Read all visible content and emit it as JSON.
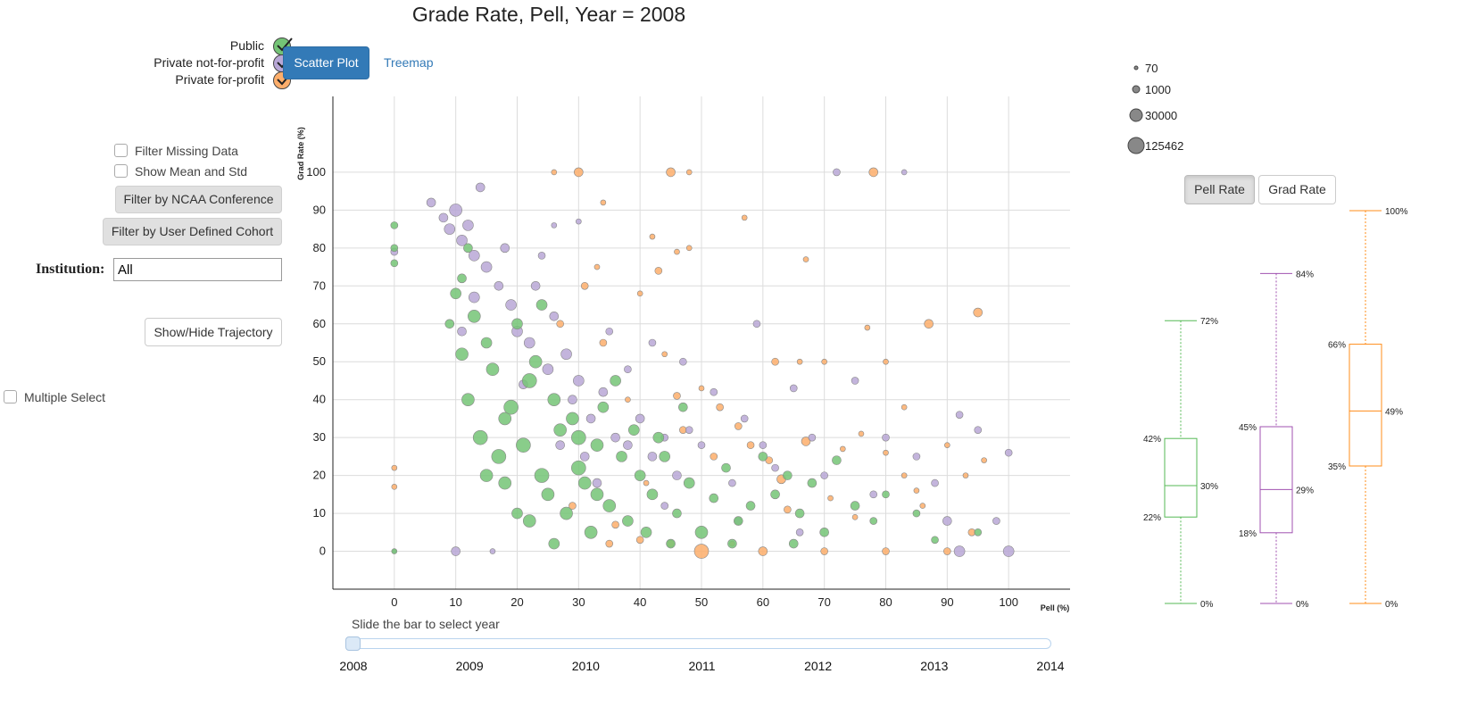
{
  "title": "Grade Rate, Pell, Year = 2008",
  "type_legend": [
    {
      "label": "Public",
      "color": "#74c476"
    },
    {
      "label": "Private not-for-profit",
      "color": "#b8a7d6"
    },
    {
      "label": "Private for-profit",
      "color": "#fdae6b"
    }
  ],
  "view_tabs": {
    "scatter": "Scatter Plot",
    "treemap": "Treemap"
  },
  "controls": {
    "filter_missing": "Filter Missing Data",
    "show_mean": "Show Mean and Std",
    "ncaa": "Filter by NCAA Conference",
    "cohort": "Filter by User Defined Cohort",
    "institution_label": "Institution:",
    "institution_value": "All",
    "trajectory": "Show/Hide Trajectory",
    "multiple_select": "Multiple Select"
  },
  "size_legend": [
    "70",
    "1000",
    "30000",
    "125462"
  ],
  "box_toggle": {
    "pell": "Pell Rate",
    "grad": "Grad Rate"
  },
  "slider": {
    "caption": "Slide the bar to select year",
    "years": [
      "2008",
      "2009",
      "2010",
      "2011",
      "2012",
      "2013",
      "2014"
    ],
    "selected": "2008"
  },
  "chart_data": {
    "type": "scatter",
    "xlabel": "Pell (%)",
    "ylabel": "Grad Rate (%)",
    "xlim": [
      -10,
      110
    ],
    "ylim": [
      -10,
      120
    ],
    "x_ticks": [
      0,
      10,
      20,
      30,
      40,
      50,
      60,
      70,
      80,
      90,
      100
    ],
    "y_ticks": [
      0,
      10,
      20,
      30,
      40,
      50,
      60,
      70,
      80,
      90,
      100
    ],
    "grid": true,
    "series": [
      {
        "name": "Public",
        "color": "#74c476",
        "points": [
          [
            0,
            86,
            4
          ],
          [
            0,
            80,
            4
          ],
          [
            0,
            76,
            4
          ],
          [
            0,
            0,
            3
          ],
          [
            11,
            52,
            7
          ],
          [
            12,
            40,
            7
          ],
          [
            14,
            30,
            8
          ],
          [
            17,
            25,
            8
          ],
          [
            20,
            60,
            6
          ],
          [
            18,
            35,
            7
          ],
          [
            22,
            45,
            8
          ],
          [
            24,
            20,
            8
          ],
          [
            25,
            15,
            7
          ],
          [
            27,
            32,
            7
          ],
          [
            28,
            10,
            7
          ],
          [
            30,
            22,
            8
          ],
          [
            31,
            18,
            7
          ],
          [
            33,
            28,
            7
          ],
          [
            35,
            12,
            7
          ],
          [
            36,
            45,
            6
          ],
          [
            38,
            8,
            6
          ],
          [
            40,
            20,
            6
          ],
          [
            42,
            15,
            6
          ],
          [
            44,
            25,
            6
          ],
          [
            46,
            10,
            5
          ],
          [
            48,
            18,
            6
          ],
          [
            50,
            5,
            7
          ],
          [
            52,
            14,
            5
          ],
          [
            54,
            22,
            5
          ],
          [
            56,
            8,
            5
          ],
          [
            58,
            12,
            5
          ],
          [
            60,
            25,
            5
          ],
          [
            62,
            15,
            5
          ],
          [
            64,
            20,
            5
          ],
          [
            66,
            10,
            5
          ],
          [
            68,
            18,
            5
          ],
          [
            70,
            5,
            5
          ],
          [
            72,
            24,
            5
          ],
          [
            75,
            12,
            5
          ],
          [
            78,
            8,
            4
          ],
          [
            80,
            15,
            4
          ],
          [
            85,
            10,
            4
          ],
          [
            88,
            3,
            4
          ],
          [
            95,
            5,
            4
          ],
          [
            15,
            55,
            6
          ],
          [
            13,
            62,
            7
          ],
          [
            10,
            68,
            6
          ],
          [
            11,
            72,
            5
          ],
          [
            16,
            48,
            7
          ],
          [
            19,
            38,
            8
          ],
          [
            21,
            28,
            8
          ],
          [
            23,
            50,
            7
          ],
          [
            26,
            40,
            7
          ],
          [
            29,
            35,
            7
          ],
          [
            32,
            5,
            7
          ],
          [
            34,
            38,
            6
          ],
          [
            37,
            25,
            6
          ],
          [
            39,
            32,
            6
          ],
          [
            43,
            30,
            6
          ],
          [
            47,
            38,
            5
          ],
          [
            9,
            60,
            5
          ],
          [
            12,
            80,
            5
          ],
          [
            24,
            65,
            6
          ],
          [
            20,
            10,
            6
          ],
          [
            26,
            2,
            6
          ],
          [
            45,
            2,
            5
          ],
          [
            55,
            2,
            5
          ],
          [
            65,
            2,
            5
          ],
          [
            18,
            18,
            7
          ],
          [
            15,
            20,
            7
          ],
          [
            22,
            8,
            7
          ],
          [
            30,
            30,
            8
          ],
          [
            33,
            15,
            7
          ],
          [
            41,
            5,
            6
          ]
        ]
      },
      {
        "name": "Private not-for-profit",
        "color": "#b8a7d6",
        "points": [
          [
            0,
            79,
            4
          ],
          [
            0,
            0,
            2
          ],
          [
            6,
            92,
            5
          ],
          [
            8,
            88,
            5
          ],
          [
            9,
            85,
            6
          ],
          [
            10,
            90,
            7
          ],
          [
            11,
            82,
            6
          ],
          [
            12,
            86,
            6
          ],
          [
            13,
            78,
            6
          ],
          [
            14,
            96,
            5
          ],
          [
            15,
            75,
            6
          ],
          [
            17,
            70,
            5
          ],
          [
            19,
            65,
            6
          ],
          [
            20,
            58,
            6
          ],
          [
            22,
            55,
            6
          ],
          [
            23,
            70,
            5
          ],
          [
            25,
            48,
            6
          ],
          [
            26,
            62,
            5
          ],
          [
            28,
            52,
            6
          ],
          [
            29,
            40,
            5
          ],
          [
            30,
            45,
            6
          ],
          [
            32,
            35,
            5
          ],
          [
            34,
            42,
            5
          ],
          [
            36,
            30,
            5
          ],
          [
            38,
            28,
            5
          ],
          [
            40,
            35,
            5
          ],
          [
            42,
            25,
            5
          ],
          [
            44,
            30,
            4
          ],
          [
            46,
            20,
            5
          ],
          [
            48,
            32,
            4
          ],
          [
            50,
            28,
            4
          ],
          [
            52,
            42,
            4
          ],
          [
            55,
            18,
            4
          ],
          [
            57,
            35,
            4
          ],
          [
            60,
            28,
            4
          ],
          [
            62,
            22,
            4
          ],
          [
            65,
            43,
            4
          ],
          [
            68,
            30,
            4
          ],
          [
            70,
            20,
            4
          ],
          [
            72,
            100,
            4
          ],
          [
            75,
            45,
            4
          ],
          [
            78,
            15,
            4
          ],
          [
            80,
            30,
            4
          ],
          [
            83,
            100,
            3
          ],
          [
            85,
            25,
            4
          ],
          [
            88,
            18,
            4
          ],
          [
            90,
            8,
            5
          ],
          [
            92,
            36,
            4
          ],
          [
            95,
            32,
            4
          ],
          [
            98,
            8,
            4
          ],
          [
            100,
            26,
            4
          ],
          [
            100,
            0,
            6
          ],
          [
            92,
            0,
            6
          ],
          [
            10,
            0,
            5
          ],
          [
            16,
            0,
            3
          ],
          [
            35,
            58,
            4
          ],
          [
            30,
            87,
            3
          ],
          [
            26,
            86,
            3
          ],
          [
            42,
            55,
            4
          ],
          [
            38,
            48,
            4
          ],
          [
            47,
            50,
            4
          ],
          [
            24,
            78,
            4
          ],
          [
            18,
            80,
            5
          ],
          [
            13,
            67,
            6
          ],
          [
            11,
            58,
            5
          ],
          [
            21,
            44,
            5
          ],
          [
            27,
            28,
            5
          ],
          [
            31,
            25,
            5
          ],
          [
            33,
            18,
            5
          ],
          [
            44,
            12,
            4
          ],
          [
            56,
            8,
            4
          ],
          [
            66,
            5,
            4
          ],
          [
            59,
            60,
            4
          ]
        ]
      },
      {
        "name": "Private for-profit",
        "color": "#fdae6b",
        "points": [
          [
            0,
            22,
            3
          ],
          [
            0,
            17,
            3
          ],
          [
            26,
            100,
            3
          ],
          [
            30,
            100,
            5
          ],
          [
            45,
            100,
            5
          ],
          [
            48,
            100,
            3
          ],
          [
            78,
            100,
            5
          ],
          [
            34,
            92,
            3
          ],
          [
            57,
            88,
            3
          ],
          [
            42,
            83,
            3
          ],
          [
            46,
            79,
            3
          ],
          [
            48,
            80,
            3
          ],
          [
            33,
            75,
            3
          ],
          [
            40,
            68,
            3
          ],
          [
            43,
            74,
            4
          ],
          [
            31,
            70,
            4
          ],
          [
            95,
            63,
            5
          ],
          [
            87,
            60,
            5
          ],
          [
            67,
            77,
            3
          ],
          [
            62,
            50,
            4
          ],
          [
            66,
            50,
            3
          ],
          [
            70,
            50,
            3
          ],
          [
            80,
            50,
            3
          ],
          [
            77,
            59,
            3
          ],
          [
            44,
            52,
            3
          ],
          [
            50,
            43,
            3
          ],
          [
            53,
            38,
            4
          ],
          [
            46,
            41,
            4
          ],
          [
            56,
            33,
            4
          ],
          [
            58,
            28,
            4
          ],
          [
            61,
            24,
            4
          ],
          [
            63,
            19,
            5
          ],
          [
            67,
            29,
            5
          ],
          [
            73,
            27,
            3
          ],
          [
            76,
            31,
            3
          ],
          [
            80,
            26,
            3
          ],
          [
            83,
            38,
            3
          ],
          [
            83,
            20,
            3
          ],
          [
            85,
            16,
            3
          ],
          [
            90,
            28,
            3
          ],
          [
            93,
            20,
            3
          ],
          [
            96,
            24,
            3
          ],
          [
            94,
            5,
            4
          ],
          [
            50,
            0,
            8
          ],
          [
            45,
            2,
            4
          ],
          [
            55,
            2,
            3
          ],
          [
            60,
            0,
            5
          ],
          [
            35,
            2,
            4
          ],
          [
            40,
            3,
            4
          ],
          [
            70,
            0,
            4
          ],
          [
            80,
            0,
            4
          ],
          [
            90,
            0,
            4
          ],
          [
            27,
            60,
            4
          ],
          [
            34,
            55,
            4
          ],
          [
            38,
            40,
            3
          ],
          [
            47,
            32,
            4
          ],
          [
            52,
            25,
            4
          ],
          [
            29,
            12,
            4
          ],
          [
            36,
            7,
            4
          ],
          [
            41,
            18,
            3
          ],
          [
            64,
            11,
            4
          ],
          [
            71,
            14,
            3
          ],
          [
            75,
            9,
            3
          ],
          [
            86,
            12,
            3
          ]
        ]
      }
    ]
  },
  "boxplots": [
    {
      "name": "Public",
      "color": "#55b955",
      "min": "0%",
      "q1": "22%",
      "median": "30%",
      "q3": "42%",
      "max": "72%",
      "values": {
        "min": 0,
        "q1": 22,
        "median": 30,
        "q3": 42,
        "max": 72
      }
    },
    {
      "name": "Private not-for-profit",
      "color": "#a052b0",
      "min": "0%",
      "q1": "18%",
      "median": "29%",
      "q3": "45%",
      "max": "84%",
      "values": {
        "min": 0,
        "q1": 18,
        "median": 29,
        "q3": 45,
        "max": 84
      }
    },
    {
      "name": "Private for-profit",
      "color": "#ff8c1a",
      "min": "0%",
      "q1": "35%",
      "median": "49%",
      "q3": "66%",
      "max": "100%",
      "values": {
        "min": 0,
        "q1": 35,
        "median": 49,
        "q3": 66,
        "max": 100
      }
    }
  ]
}
